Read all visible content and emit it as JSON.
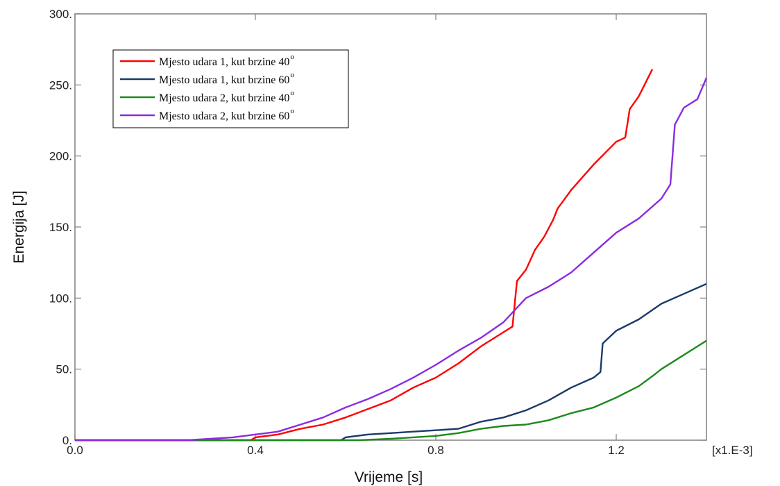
{
  "chart_data": {
    "type": "line",
    "xlabel": "Vrijeme [s]",
    "ylabel": "Energija [J]",
    "x_multiplier_label": "[x1.E-3]",
    "xlim": [
      0.0,
      1.4
    ],
    "ylim": [
      0,
      300
    ],
    "x_ticks": [
      0.0,
      0.4,
      0.8,
      1.2
    ],
    "x_tick_labels": [
      "0.0",
      "0.4",
      "0.8",
      "1.2"
    ],
    "y_ticks": [
      0,
      50,
      100,
      150,
      200,
      250,
      300
    ],
    "y_tick_labels": [
      "0.",
      "50.",
      "100.",
      "150.",
      "200.",
      "250.",
      "300."
    ],
    "grid": false,
    "legend_position": "top-left",
    "series": [
      {
        "name": "Mjesto udara 1, kut brzine 40°",
        "label_text": "Mjesto udara 1, kut brzine 40",
        "degree_symbol": "o",
        "color": "#ff0000",
        "points": [
          [
            0.0,
            0
          ],
          [
            0.39,
            0
          ],
          [
            0.4,
            2
          ],
          [
            0.45,
            4
          ],
          [
            0.5,
            8
          ],
          [
            0.55,
            11
          ],
          [
            0.6,
            16
          ],
          [
            0.65,
            22
          ],
          [
            0.7,
            28
          ],
          [
            0.75,
            37
          ],
          [
            0.8,
            44
          ],
          [
            0.85,
            54
          ],
          [
            0.9,
            66
          ],
          [
            0.95,
            76
          ],
          [
            0.97,
            80
          ],
          [
            0.98,
            112
          ],
          [
            1.0,
            120
          ],
          [
            1.02,
            134
          ],
          [
            1.04,
            143
          ],
          [
            1.06,
            155
          ],
          [
            1.07,
            163
          ],
          [
            1.1,
            176
          ],
          [
            1.15,
            194
          ],
          [
            1.2,
            210
          ],
          [
            1.22,
            213
          ],
          [
            1.23,
            233
          ],
          [
            1.25,
            242
          ],
          [
            1.28,
            261
          ]
        ]
      },
      {
        "name": "Mjesto udara 1, kut brzine 60°",
        "label_text": "Mjesto udara 1, kut brzine 60",
        "degree_symbol": "o",
        "color": "#1a3a6b",
        "points": [
          [
            0.0,
            0
          ],
          [
            0.59,
            0
          ],
          [
            0.6,
            2
          ],
          [
            0.65,
            4
          ],
          [
            0.7,
            5
          ],
          [
            0.75,
            6
          ],
          [
            0.8,
            7
          ],
          [
            0.85,
            8
          ],
          [
            0.9,
            13
          ],
          [
            0.95,
            16
          ],
          [
            1.0,
            21
          ],
          [
            1.05,
            28
          ],
          [
            1.1,
            37
          ],
          [
            1.15,
            44
          ],
          [
            1.165,
            48
          ],
          [
            1.17,
            68
          ],
          [
            1.2,
            77
          ],
          [
            1.25,
            85
          ],
          [
            1.3,
            96
          ],
          [
            1.35,
            103
          ],
          [
            1.4,
            110
          ]
        ]
      },
      {
        "name": "Mjesto udara 2, kut brzine 40°",
        "label_text": "Mjesto udara 2, kut brzine 40",
        "degree_symbol": "o",
        "color": "#1d8a1d",
        "points": [
          [
            0.0,
            0
          ],
          [
            0.63,
            0
          ],
          [
            0.7,
            1
          ],
          [
            0.75,
            2
          ],
          [
            0.8,
            3
          ],
          [
            0.85,
            5
          ],
          [
            0.9,
            8
          ],
          [
            0.95,
            10
          ],
          [
            1.0,
            11
          ],
          [
            1.05,
            14
          ],
          [
            1.1,
            19
          ],
          [
            1.15,
            23
          ],
          [
            1.2,
            30
          ],
          [
            1.25,
            38
          ],
          [
            1.28,
            45
          ],
          [
            1.3,
            50
          ],
          [
            1.35,
            60
          ],
          [
            1.4,
            70
          ]
        ]
      },
      {
        "name": "Mjesto udara 2, kut brzine 60°",
        "label_text": "Mjesto udara 2, kut brzine 60",
        "degree_symbol": "o",
        "color": "#8a2be2",
        "points": [
          [
            0.0,
            0
          ],
          [
            0.25,
            0
          ],
          [
            0.3,
            1
          ],
          [
            0.35,
            2
          ],
          [
            0.4,
            4
          ],
          [
            0.45,
            6
          ],
          [
            0.5,
            11
          ],
          [
            0.55,
            16
          ],
          [
            0.6,
            23
          ],
          [
            0.65,
            29
          ],
          [
            0.7,
            36
          ],
          [
            0.75,
            44
          ],
          [
            0.8,
            53
          ],
          [
            0.85,
            63
          ],
          [
            0.9,
            72
          ],
          [
            0.95,
            83
          ],
          [
            1.0,
            100
          ],
          [
            1.05,
            108
          ],
          [
            1.1,
            118
          ],
          [
            1.15,
            132
          ],
          [
            1.2,
            146
          ],
          [
            1.25,
            156
          ],
          [
            1.3,
            170
          ],
          [
            1.32,
            180
          ],
          [
            1.33,
            222
          ],
          [
            1.35,
            234
          ],
          [
            1.38,
            240
          ],
          [
            1.4,
            255
          ]
        ]
      }
    ]
  }
}
